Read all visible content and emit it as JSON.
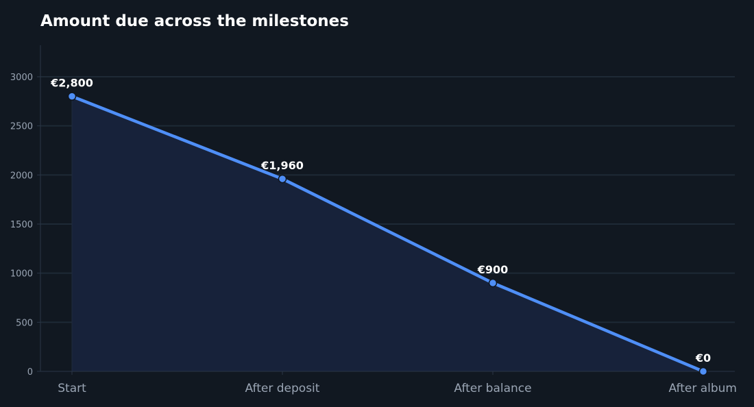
{
  "chart_data": {
    "type": "area",
    "title": "Amount due across the milestones",
    "xlabel": "",
    "ylabel": "",
    "categories": [
      "Start",
      "After deposit",
      "After balance",
      "After album"
    ],
    "values": [
      2800,
      1960,
      900,
      0
    ],
    "data_labels": [
      "€2,800",
      "€1,960",
      "€900",
      "€0"
    ],
    "ylim": [
      0,
      3000
    ],
    "yticks": [
      0,
      500,
      1000,
      1500,
      2000,
      2500,
      3000
    ],
    "ytick_labels": [
      "0",
      "500",
      "1000",
      "1500",
      "2000",
      "2500",
      "3000"
    ],
    "grid": true,
    "legend": "none"
  },
  "colors": {
    "background": "#111821",
    "line": "#4f8ff7",
    "area_fill": "#17223a",
    "grid": "#1e2a36",
    "axis": "#2a3646",
    "label": "#ffffff",
    "tick": "#9aa5b4"
  }
}
